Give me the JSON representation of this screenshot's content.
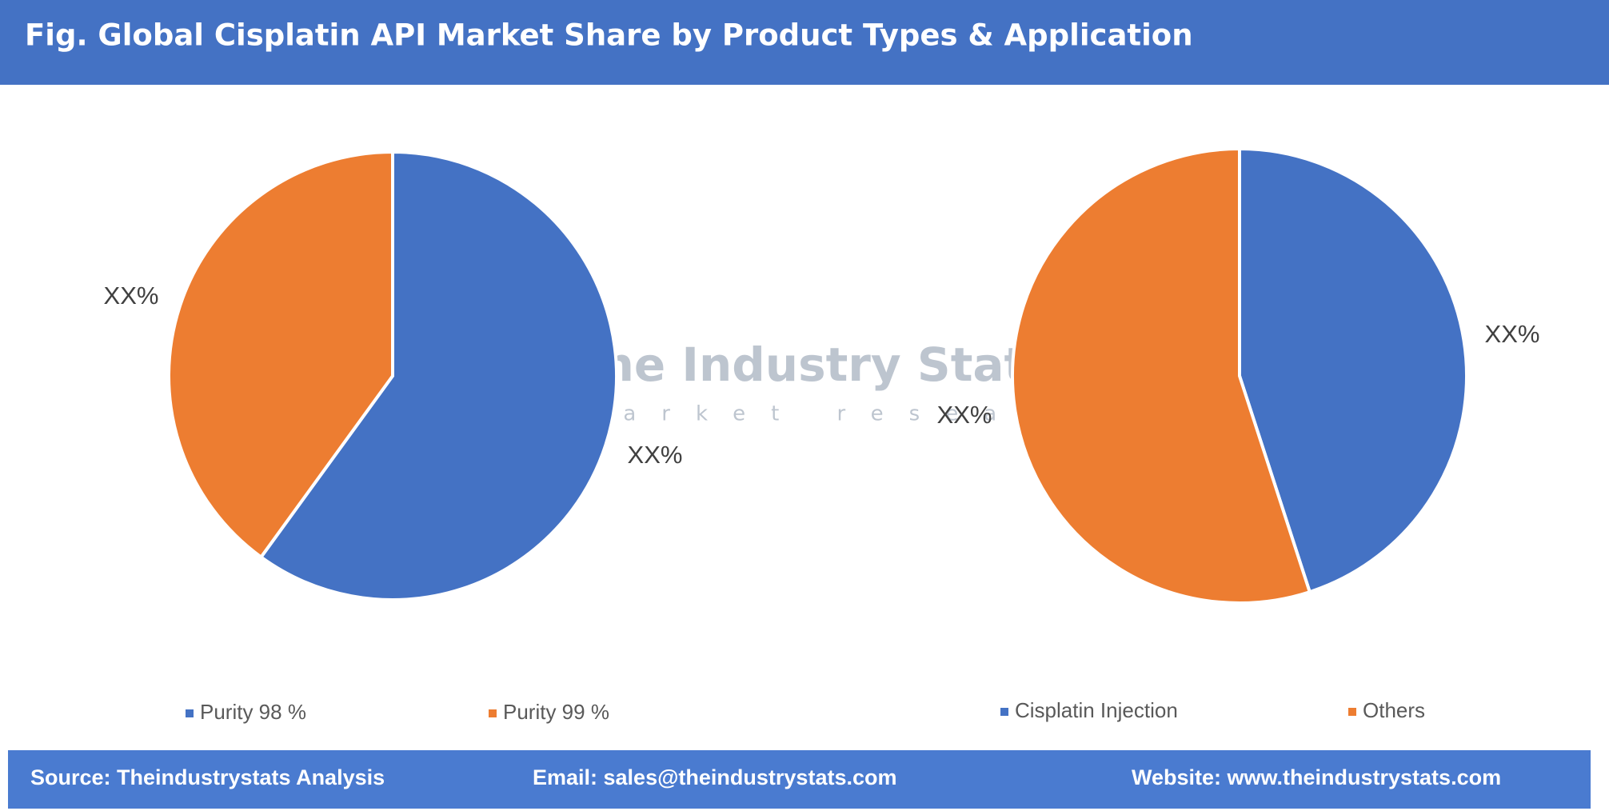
{
  "title": "Fig. Global Cisplatin API Market Share by Product Types & Application",
  "watermark": {
    "name": "The Industry Stats",
    "tagline": "market research"
  },
  "chart_data": [
    {
      "type": "pie",
      "categories": [
        "Purity 98 %",
        "Purity 99 %"
      ],
      "values": [
        60,
        40
      ],
      "value_labels": [
        "XX%",
        "XX%"
      ],
      "colors": [
        "#4472c4",
        "#ed7d31"
      ]
    },
    {
      "type": "pie",
      "categories": [
        "Cisplatin Injection",
        "Others"
      ],
      "values": [
        45,
        55
      ],
      "value_labels": [
        "XX%",
        "XX%"
      ],
      "colors": [
        "#4472c4",
        "#ed7d31"
      ]
    }
  ],
  "footer": {
    "source": "Source: Theindustrystats Analysis",
    "email": "Email: sales@theindustrystats.com",
    "website": "Website: www.theindustrystats.com"
  }
}
